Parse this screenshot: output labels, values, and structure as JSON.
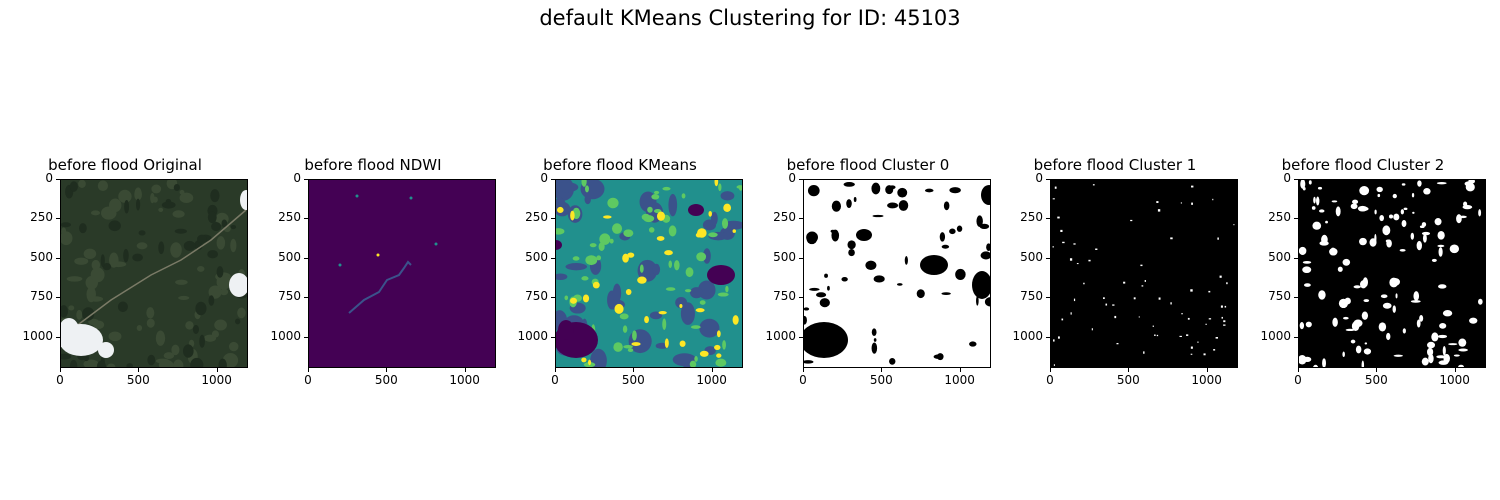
{
  "figure": {
    "suptitle": "default KMeans Clustering for ID: 45103"
  },
  "chart_data": [
    {
      "type": "image",
      "title": "before flood Original",
      "colormap": "rgb",
      "xticks": [
        0,
        500,
        1000
      ],
      "yticks": [
        0,
        250,
        500,
        750,
        1000
      ],
      "xlim": [
        0,
        1200
      ],
      "ylim": [
        1200,
        0
      ]
    },
    {
      "type": "image",
      "title": "before flood NDWI",
      "colormap": "viridis",
      "xticks": [
        0,
        500,
        1000
      ],
      "yticks": [
        0,
        250,
        500,
        750,
        1000
      ],
      "xlim": [
        0,
        1200
      ],
      "ylim": [
        1200,
        0
      ]
    },
    {
      "type": "image",
      "title": "before flood KMeans",
      "colormap": "viridis",
      "xticks": [
        0,
        500,
        1000
      ],
      "yticks": [
        0,
        250,
        500,
        750,
        1000
      ],
      "xlim": [
        0,
        1200
      ],
      "ylim": [
        1200,
        0
      ]
    },
    {
      "type": "image",
      "title": "before flood Cluster 0",
      "colormap": "gray",
      "xticks": [
        0,
        500,
        1000
      ],
      "yticks": [
        0,
        250,
        500,
        750,
        1000
      ],
      "xlim": [
        0,
        1200
      ],
      "ylim": [
        1200,
        0
      ]
    },
    {
      "type": "image",
      "title": "before flood Cluster 1",
      "colormap": "gray",
      "xticks": [
        0,
        500,
        1000
      ],
      "yticks": [
        0,
        250,
        500,
        750,
        1000
      ],
      "xlim": [
        0,
        1200
      ],
      "ylim": [
        1200,
        0
      ]
    },
    {
      "type": "image",
      "title": "before flood Cluster 2",
      "colormap": "gray",
      "xticks": [
        0,
        500,
        1000
      ],
      "yticks": [
        0,
        250,
        500,
        750,
        1000
      ],
      "xlim": [
        0,
        1200
      ],
      "ylim": [
        1200,
        0
      ]
    }
  ],
  "colors": {
    "original_base": "#2a3a28",
    "original_cloud": "#eef1f3",
    "original_road": "#7a7a66",
    "viridis_purple": "#440154",
    "viridis_blue": "#3b528b",
    "viridis_teal": "#21908d",
    "viridis_green": "#5ec962",
    "viridis_yellow": "#fde725",
    "mask_on": "#ffffff",
    "mask_off": "#000000"
  }
}
